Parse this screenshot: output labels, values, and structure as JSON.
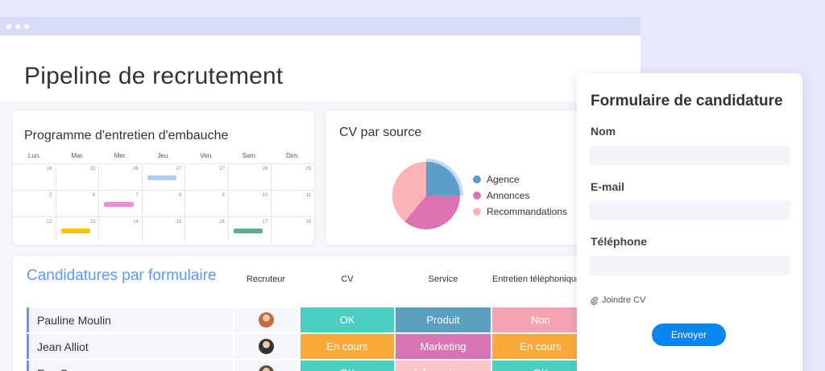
{
  "page": {
    "title": "Pipeline de recrutement"
  },
  "calendar": {
    "title": "Programme d'entretien d'embauche",
    "days": [
      "Lun.",
      "Mar.",
      "Mer.",
      "Jeu.",
      "Ven.",
      "Sam.",
      "Dim."
    ],
    "weeks": [
      [
        "24",
        "25",
        "26",
        "27",
        "27",
        "28",
        "29"
      ],
      [
        "5",
        "6",
        "7",
        "8",
        "9",
        "10",
        "11"
      ],
      [
        "12",
        "13",
        "14",
        "15",
        "16",
        "17",
        "18"
      ]
    ],
    "events": [
      {
        "week": 0,
        "day": 3,
        "color": "#a9cef5"
      },
      {
        "week": 1,
        "day": 2,
        "color": "#f28ad9"
      },
      {
        "week": 2,
        "day": 1,
        "color": "#f7c50b"
      },
      {
        "week": 2,
        "day": 5,
        "color": "#5fad8a"
      }
    ]
  },
  "chart_data": {
    "type": "pie",
    "title": "CV par source",
    "slices": [
      {
        "label": "Agence",
        "value": 25,
        "color": "#5a9ec9"
      },
      {
        "label": "Annonces",
        "value": 36,
        "color": "#dd72b1"
      },
      {
        "label": "Recommandations",
        "value": 39,
        "color": "#fbb3b6"
      }
    ],
    "legend_position": "right"
  },
  "table": {
    "title": "Candidatures par formulaire",
    "columns": [
      "Recruteur",
      "CV",
      "Service",
      "Entretien téléphonique"
    ],
    "rows": [
      {
        "name": "Pauline Moulin",
        "avatar_color": "#c4683e",
        "cv": {
          "label": "OK",
          "color": "#4ccfc0"
        },
        "service": {
          "label": "Produit",
          "color": "#5ba0c0"
        },
        "entretien": {
          "label": "Non",
          "color": "#f4a3b3"
        }
      },
      {
        "name": "Jean Alliot",
        "avatar_color": "#333333",
        "cv": {
          "label": "En cours",
          "color": "#fba93b"
        },
        "service": {
          "label": "Marketing",
          "color": "#d874b3"
        },
        "entretien": {
          "label": "En cours",
          "color": "#fba93b"
        }
      },
      {
        "name": "Eva Granger",
        "avatar_color": "#5a4a3e",
        "cv": {
          "label": "OK",
          "color": "#4ccfc0"
        },
        "service": {
          "label": "Informatique",
          "color": "#f8c6c6"
        },
        "entretien": {
          "label": "OK",
          "color": "#4ccfc0"
        }
      }
    ]
  },
  "form": {
    "title": "Formulaire de candidature",
    "fields": [
      {
        "label": "Nom",
        "value": ""
      },
      {
        "label": "E-mail",
        "value": ""
      },
      {
        "label": "Téléphone",
        "value": ""
      }
    ],
    "attach_label": "Joindre CV",
    "attach_icon": "paperclip-icon",
    "submit_label": "Envoyer"
  }
}
